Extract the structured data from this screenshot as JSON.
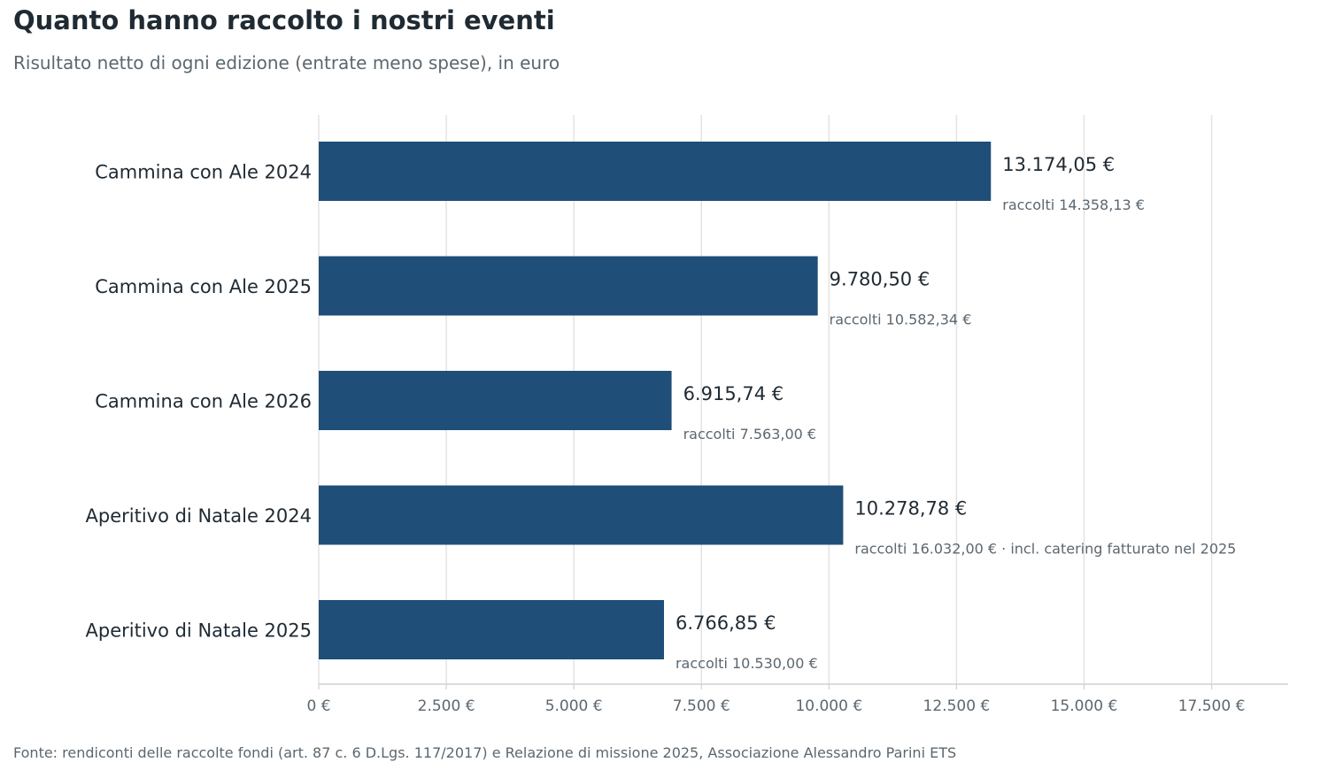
{
  "header": {
    "title": "Quanto hanno raccolto i nostri eventi",
    "subtitle": "Risultato netto di ogni edizione (entrate meno spese), in euro"
  },
  "footer": {
    "source": "Fonte: rendiconti delle raccolte fondi (art. 87 c. 6 D.Lgs. 117/2017) e Relazione di missione 2025, Associazione Alessandro Parini ETS"
  },
  "colors": {
    "bar": "#1f4e78",
    "grid": "#e3e3e3",
    "axis": "#d0d0d0"
  },
  "chart_data": {
    "type": "bar",
    "orientation": "horizontal",
    "title": "Quanto hanno raccolto i nostri eventi",
    "subtitle": "Risultato netto di ogni edizione (entrate meno spese), in euro",
    "xlabel": "",
    "ylabel": "",
    "xlim": [
      0,
      19000
    ],
    "grid": true,
    "categories": [
      "Cammina con Ale 2024",
      "Cammina con Ale 2025",
      "Cammina con Ale 2026",
      "Aperitivo di Natale 2024",
      "Aperitivo di Natale 2025"
    ],
    "values": [
      13174.05,
      9780.5,
      6915.74,
      10278.78,
      6766.85
    ],
    "value_labels": [
      "13.174,05 €",
      "9.780,50 €",
      "6.915,74 €",
      "10.278,78 €",
      "6.766,85 €"
    ],
    "notes": [
      "raccolti 14.358,13 €",
      "raccolti 10.582,34 €",
      "raccolti 7.563,00 €",
      "raccolti 16.032,00 € · incl. catering fatturato nel 2025",
      "raccolti 10.530,00 €"
    ],
    "ticks": [
      0,
      2500,
      5000,
      7500,
      10000,
      12500,
      15000,
      17500
    ],
    "tick_labels": [
      "0 €",
      "2.500 €",
      "5.000 €",
      "7.500 €",
      "10.000 €",
      "12.500 €",
      "15.000 €",
      "17.500 €"
    ]
  }
}
